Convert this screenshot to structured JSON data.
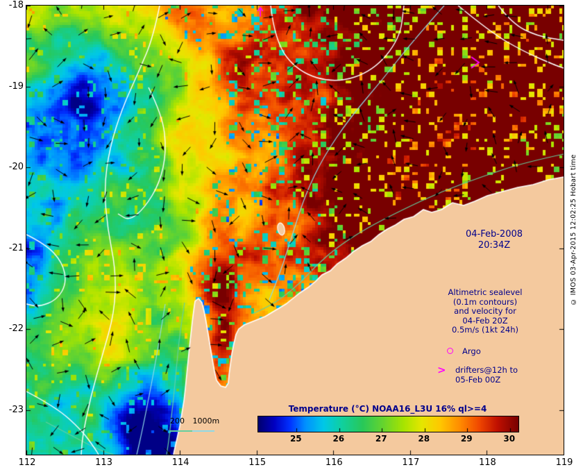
{
  "figure": {
    "credit": "© IMOS 03-Apr-2015 12:02:25 Hobart time"
  },
  "axes": {
    "x_ticks": [
      "112",
      "113",
      "114",
      "115",
      "116",
      "117",
      "118",
      "119"
    ],
    "y_ticks": [
      "-18",
      "-19",
      "-20",
      "-21",
      "-22",
      "-23"
    ]
  },
  "annotations": {
    "datetime": [
      "04-Feb-2008",
      "20:34Z"
    ],
    "altimetry": [
      "Altimetric sealevel",
      "(0.1m contours)",
      "and velocity for",
      "04-Feb 20Z",
      "0.5m/s (1kt 24h)"
    ],
    "argo": "Argo",
    "drifter_symbol": ">",
    "drifters": [
      "drifters@12h to",
      "05-Feb 00Z"
    ],
    "depth_scale": "200 1000m"
  },
  "colorbar": {
    "title": "Temperature (°C) NOAA16_L3U 16% ql>=4",
    "ticks": [
      "25",
      "26",
      "27",
      "28",
      "29",
      "30"
    ],
    "domain": [
      24.1,
      30.2
    ]
  },
  "colors": {
    "land": "#f4c99e",
    "annotation_text": "#00008b",
    "magenta": "#ff00ff",
    "arrow": "#000000",
    "contour_sealevel": "#ffffff",
    "contour_200m": "#63cfa0",
    "contour_1000m": "#8fd9e6",
    "palette": [
      [
        0.0,
        "#000070"
      ],
      [
        0.06,
        "#0000c0"
      ],
      [
        0.12,
        "#0030ff"
      ],
      [
        0.18,
        "#0090ff"
      ],
      [
        0.25,
        "#00c8e8"
      ],
      [
        0.32,
        "#10d0a0"
      ],
      [
        0.4,
        "#28c85a"
      ],
      [
        0.48,
        "#66d42e"
      ],
      [
        0.56,
        "#a8e400"
      ],
      [
        0.63,
        "#e6e600"
      ],
      [
        0.7,
        "#ffc800"
      ],
      [
        0.78,
        "#ff8800"
      ],
      [
        0.85,
        "#f04800"
      ],
      [
        0.92,
        "#c01000"
      ],
      [
        1.0,
        "#780000"
      ]
    ]
  }
}
